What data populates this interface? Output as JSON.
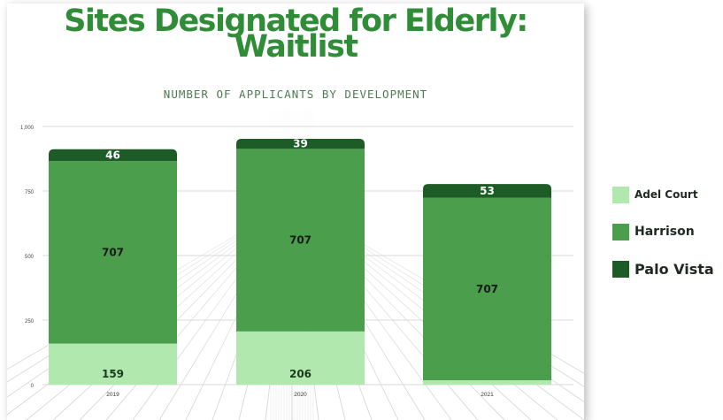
{
  "chart_data": {
    "type": "bar",
    "stacked": true,
    "title": "Sites Designated for Elderly: Waitlist",
    "subtitle": "NUMBER OF APPLICANTS BY DEVELOPMENT",
    "categories": [
      "2019",
      "2020",
      "2021"
    ],
    "series": [
      {
        "name": "Adel Court",
        "values": [
          159,
          206,
          17
        ],
        "color": "#b1e8ad"
      },
      {
        "name": "Harrison",
        "values": [
          707,
          707,
          707
        ],
        "color": "#4a9e4c"
      },
      {
        "name": "Palo Vista",
        "values": [
          46,
          39,
          53
        ],
        "color": "#1e5c27"
      }
    ],
    "ylim": [
      0,
      1000
    ],
    "yticks": [
      0,
      250,
      500,
      750,
      1000
    ],
    "ytick_labels": [
      "0",
      "250",
      "500",
      "750",
      "1,000"
    ],
    "grid": true,
    "legend_position": "right"
  }
}
